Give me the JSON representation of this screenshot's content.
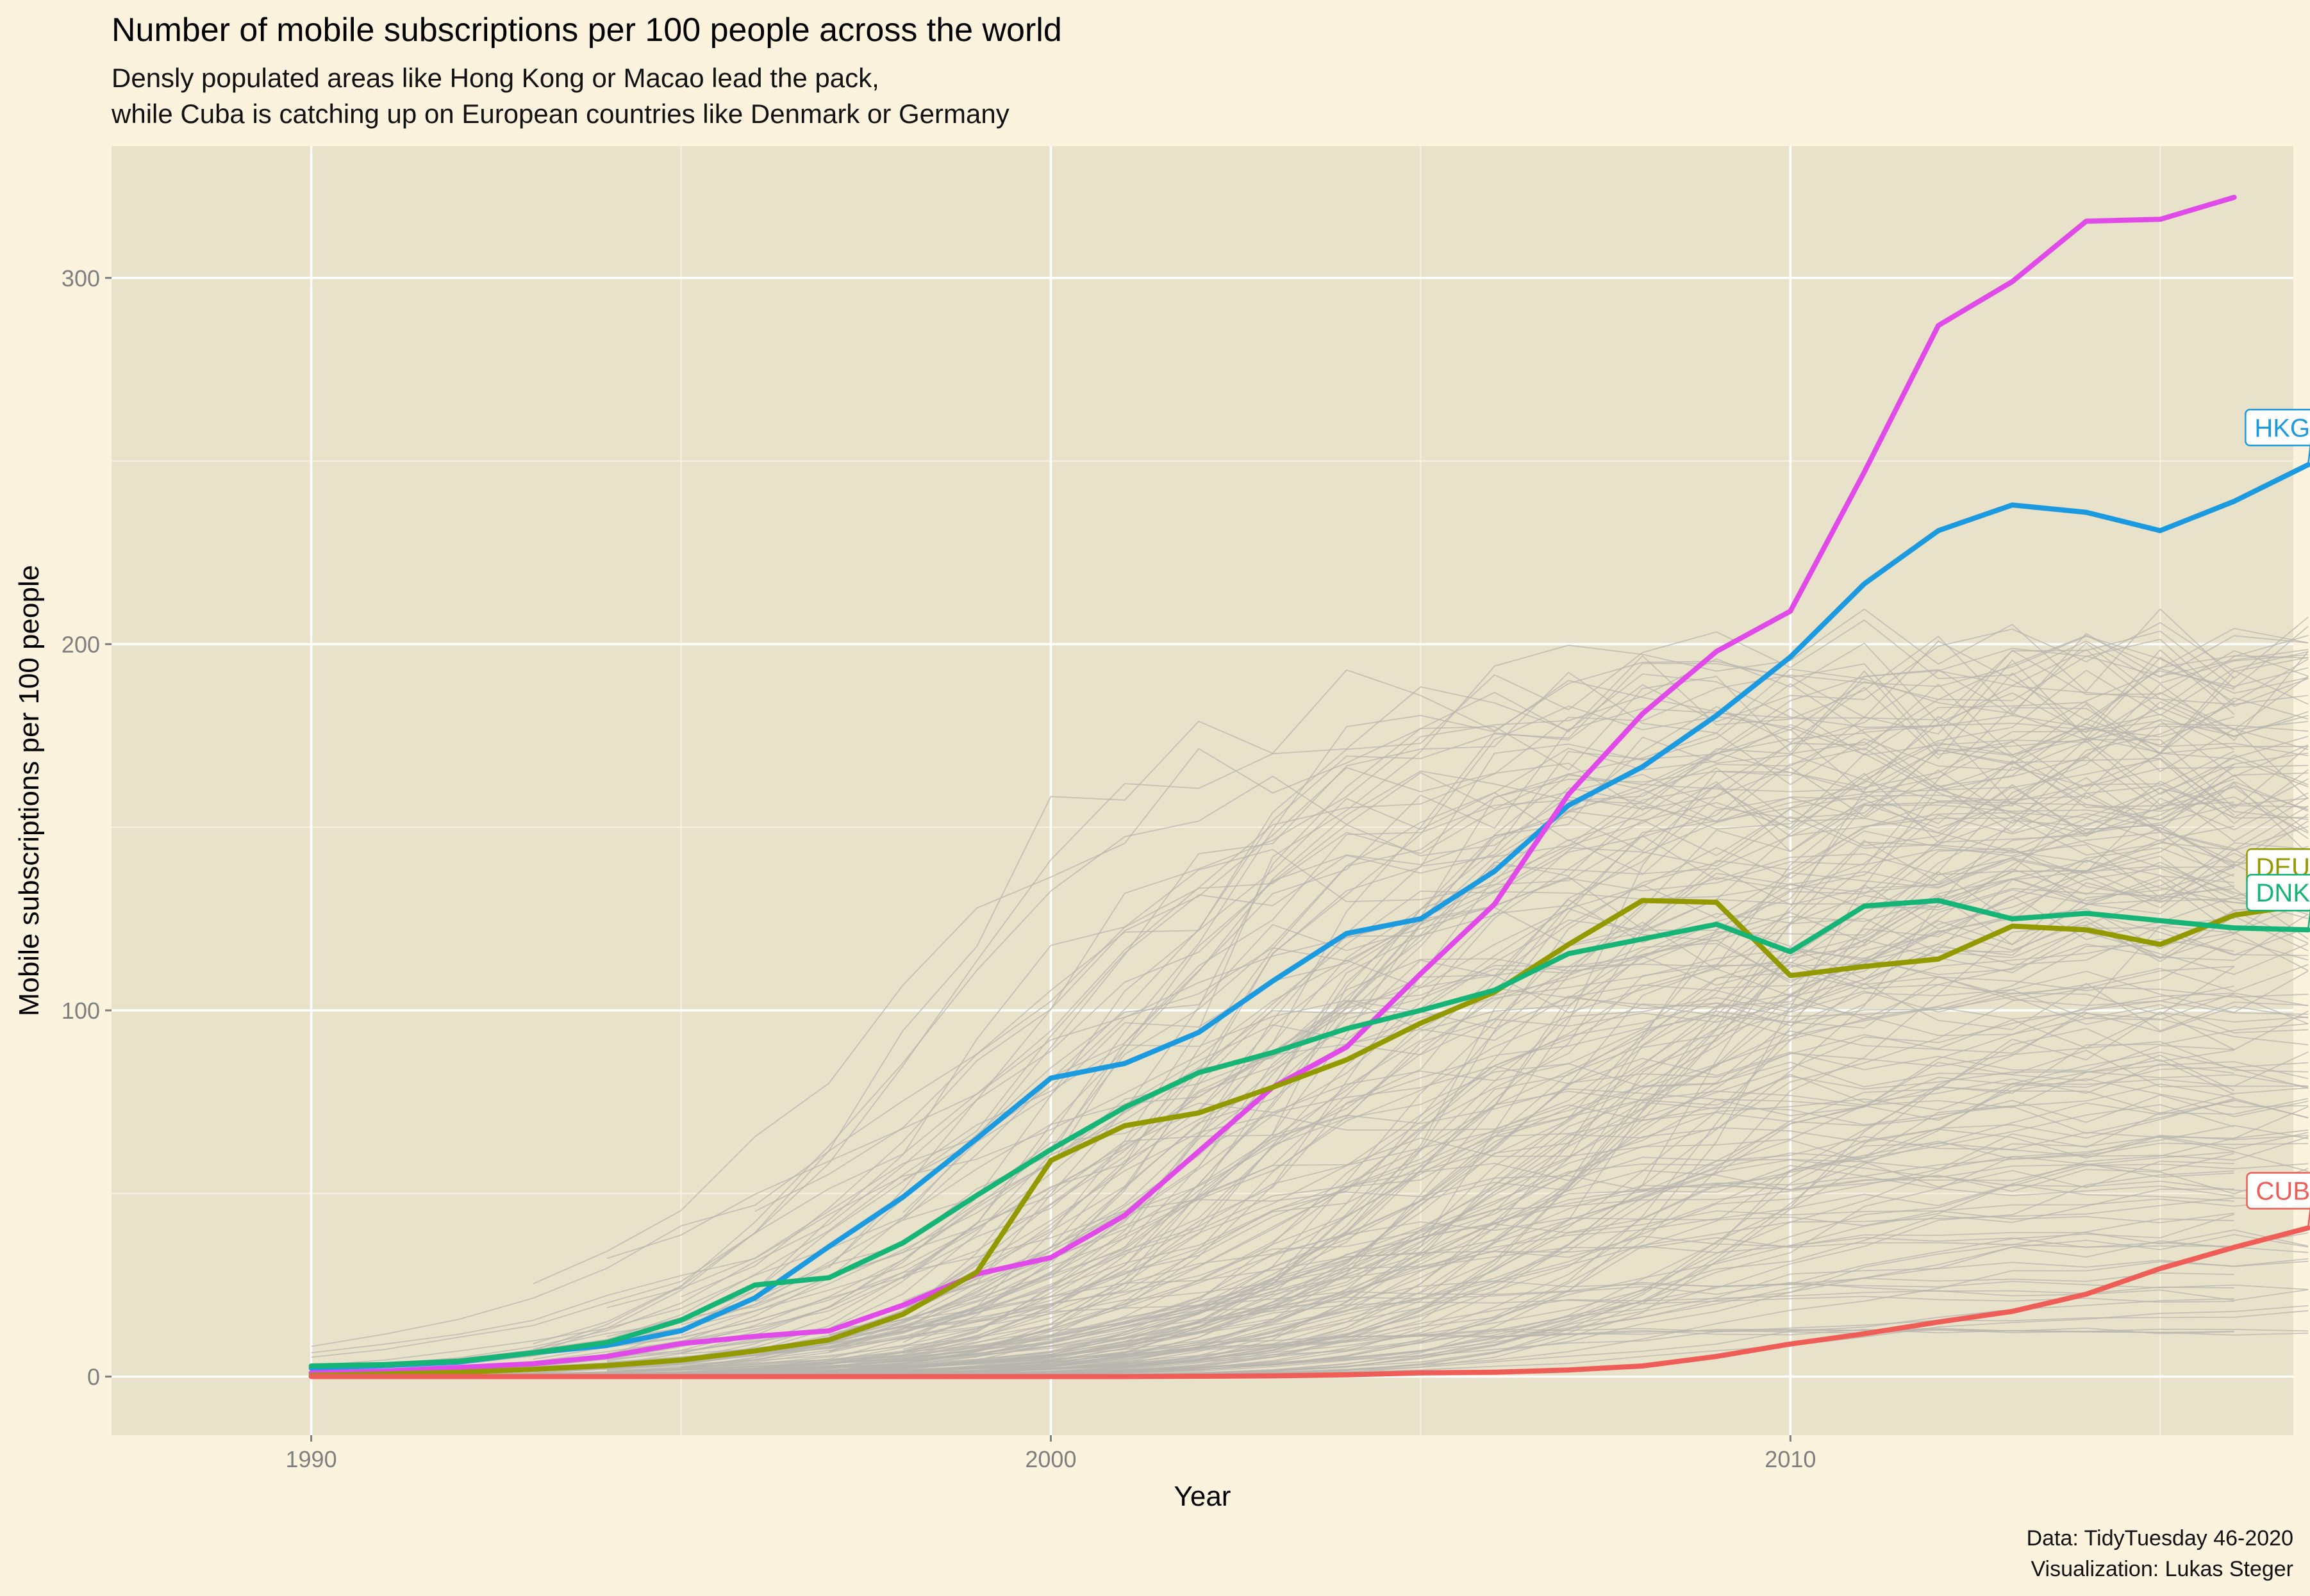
{
  "chart_data": {
    "type": "line",
    "title": "Number of mobile subscriptions per 100 people across the world",
    "subtitle": [
      "Densly populated areas like Hong Kong or Macao lead the pack,",
      "while Cuba is catching up on European countries like Denmark or Germany"
    ],
    "xlabel": "Year",
    "ylabel": "Mobile subscriptions per 100 people",
    "xlim": [
      1987.3,
      2016.8
    ],
    "ylim": [
      -16,
      336
    ],
    "x_ticks": [
      1990,
      2000,
      2010
    ],
    "x_minor": [
      1995,
      2005,
      2015
    ],
    "y_ticks": [
      0,
      100,
      200,
      300
    ],
    "y_minor": [
      50,
      150,
      250
    ],
    "grid": true,
    "legend": "none",
    "caption": [
      "Data: TidyTuesday 46-2020",
      "Visualization: Lukas Steger"
    ],
    "x": [
      1990,
      1991,
      1992,
      1993,
      1994,
      1995,
      1996,
      1997,
      1998,
      1999,
      2000,
      2001,
      2002,
      2003,
      2004,
      2005,
      2006,
      2007,
      2008,
      2009,
      2010,
      2011,
      2012,
      2013,
      2014,
      2015,
      2016,
      2017
    ],
    "series": [
      {
        "name": "HKG",
        "color": "#1c9ae0",
        "labeled": true,
        "values": [
          2.3,
          3.0,
          4.0,
          6.5,
          8.5,
          12.5,
          21.5,
          35.5,
          49.0,
          65.0,
          81.5,
          85.5,
          94.0,
          108.0,
          121.0,
          125.0,
          138.0,
          156.0,
          166.5,
          180.5,
          196.5,
          216.5,
          231.0,
          238.0,
          236.0,
          231.0,
          239.0,
          249.0
        ]
      },
      {
        "name": "MAC",
        "color": "#e04ae8",
        "labeled": false,
        "values": [
          1.0,
          1.5,
          2.5,
          3.5,
          5.5,
          9.0,
          11.0,
          12.5,
          19.5,
          28.0,
          32.5,
          44.0,
          61.5,
          79.0,
          90.0,
          110.0,
          129.0,
          159.0,
          181.0,
          198.0,
          209.0,
          247.0,
          287.0,
          299.0,
          315.5,
          316.0,
          322.0,
          null
        ]
      },
      {
        "name": "DEU",
        "color": "#929a00",
        "labeled": true,
        "values": [
          0.3,
          0.7,
          1.2,
          2.0,
          3.0,
          4.5,
          7.0,
          10.0,
          17.0,
          28.5,
          59.0,
          68.5,
          72.0,
          79.0,
          86.5,
          96.5,
          105.0,
          118.0,
          130.0,
          129.5,
          109.5,
          112.0,
          114.0,
          123.0,
          122.0,
          118.0,
          126.0,
          129.0
        ]
      },
      {
        "name": "DNK",
        "color": "#16b477",
        "labeled": true,
        "values": [
          2.9,
          3.3,
          4.2,
          6.5,
          9.3,
          15.4,
          25.0,
          27.0,
          36.5,
          49.5,
          62.0,
          73.5,
          83.0,
          88.5,
          95.0,
          100.0,
          105.5,
          115.5,
          119.5,
          123.5,
          116.0,
          128.5,
          130.0,
          125.0,
          126.5,
          124.5,
          122.5,
          122.0
        ]
      },
      {
        "name": "CUB",
        "color": "#ef5d58",
        "labeled": true,
        "values": [
          0,
          0,
          0,
          0,
          0,
          0,
          0,
          0,
          0,
          0,
          0,
          0,
          0.1,
          0.2,
          0.5,
          1.0,
          1.2,
          1.8,
          2.9,
          5.5,
          8.9,
          11.7,
          14.9,
          17.8,
          22.5,
          29.5,
          35.3,
          40.6
        ]
      }
    ]
  }
}
